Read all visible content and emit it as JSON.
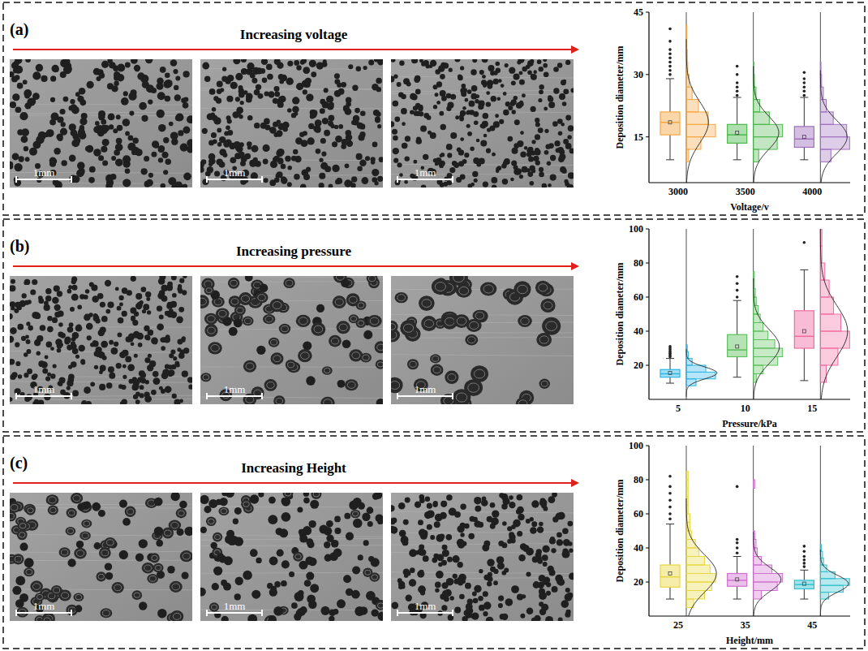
{
  "panels": [
    {
      "letter": "(a)",
      "heading": "Increasing voltage",
      "scale_bars": [
        "1mm",
        "1mm",
        "1mm"
      ]
    },
    {
      "letter": "(b)",
      "heading": "Increasing pressure",
      "scale_bars": [
        "1mm",
        "1mm",
        "1mm"
      ]
    },
    {
      "letter": "(c)",
      "heading": "Increasing Height",
      "scale_bars": [
        "1mm",
        "1mm",
        "1mm"
      ]
    }
  ],
  "chart_data": [
    {
      "type": "box",
      "x_label": "Voltage/v",
      "y_label": "Deposition diameter/mm",
      "categories": [
        "3000",
        "3500",
        "4000"
      ],
      "colors": [
        "#f5a742",
        "#4cb84c",
        "#a070c0"
      ],
      "ylim": [
        4,
        45
      ],
      "yticks": [
        15,
        30,
        45
      ],
      "boxes": [
        {
          "min": 9.5,
          "q1": 15.5,
          "median": 18.5,
          "q3": 21,
          "max": 29,
          "mean": 18.5,
          "outliers": [
            30,
            31,
            32,
            33,
            34,
            35,
            36,
            38,
            41
          ],
          "hist": {
            "bins": [
              9,
              12,
              15,
              18,
              21,
              24,
              27,
              30,
              33,
              36,
              39,
              42
            ],
            "counts": [
              5,
              30,
              60,
              45,
              25,
              12,
              6,
              3,
              2,
              1,
              1
            ]
          },
          "curve": {
            "mean": 18.5,
            "sd": 5
          }
        },
        {
          "min": 9.5,
          "q1": 13.5,
          "median": 15.5,
          "q3": 18,
          "max": 24.5,
          "mean": 16,
          "outliers": [
            25,
            26,
            27,
            28,
            30,
            32
          ],
          "hist": {
            "bins": [
              9,
              12,
              15,
              18,
              21,
              24,
              27,
              30,
              33
            ],
            "counts": [
              10,
              45,
              55,
              30,
              12,
              5,
              2,
              1
            ]
          },
          "curve": {
            "mean": 16,
            "sd": 4
          }
        },
        {
          "min": 9.5,
          "q1": 12.5,
          "median": 14.5,
          "q3": 17.5,
          "max": 24.5,
          "mean": 15,
          "outliers": [
            25,
            26,
            27,
            28,
            29,
            30.5
          ],
          "hist": {
            "bins": [
              9,
              12,
              15,
              18,
              21,
              24,
              27,
              30,
              33
            ],
            "counts": [
              18,
              50,
              45,
              22,
              10,
              5,
              2,
              1
            ]
          },
          "curve": {
            "mean": 15,
            "sd": 4
          }
        }
      ]
    },
    {
      "type": "box",
      "x_label": "Pressure/kPa",
      "y_label": "Deposition diameter/mm",
      "categories": [
        "5",
        "10",
        "15"
      ],
      "colors": [
        "#2bb5e8",
        "#5cc05c",
        "#f06ca0"
      ],
      "ylim": [
        0,
        100
      ],
      "yticks": [
        20,
        40,
        60,
        80,
        100
      ],
      "boxes": [
        {
          "min": 9.5,
          "q1": 13,
          "median": 15,
          "q3": 17.5,
          "max": 24,
          "mean": 15.5,
          "outliers": [
            25,
            26,
            27,
            28,
            29,
            30,
            31
          ],
          "hist": {
            "bins": [
              8,
              12,
              16,
              20,
              24,
              28,
              32
            ],
            "counts": [
              20,
              60,
              40,
              12,
              4,
              2
            ]
          },
          "curve": {
            "mean": 15.5,
            "sd": 3.5
          }
        },
        {
          "min": 13,
          "q1": 25,
          "median": 29,
          "q3": 38,
          "max": 58,
          "mean": 31,
          "outliers": [
            60,
            64,
            68,
            72
          ],
          "hist": {
            "bins": [
              10,
              15,
              20,
              25,
              30,
              35,
              40,
              45,
              50,
              55,
              60,
              65,
              70,
              75
            ],
            "counts": [
              3,
              10,
              25,
              30,
              22,
              15,
              10,
              7,
              5,
              3,
              2,
              1,
              1
            ]
          },
          "curve": {
            "mean": 31,
            "sd": 10
          }
        },
        {
          "min": 11,
          "q1": 30,
          "median": 37,
          "q3": 52,
          "max": 76,
          "mean": 40,
          "outliers": [
            92
          ],
          "hist": {
            "bins": [
              10,
              20,
              30,
              40,
              50,
              60,
              70,
              80,
              90,
              100
            ],
            "counts": [
              4,
              12,
              20,
              14,
              9,
              6,
              3,
              1,
              1
            ]
          },
          "curve": {
            "mean": 40,
            "sd": 15
          }
        }
      ]
    },
    {
      "type": "box",
      "x_label": "Height/mm",
      "y_label": "Deposition diameter/mm",
      "categories": [
        "25",
        "35",
        "45"
      ],
      "colors": [
        "#e8d840",
        "#d070d0",
        "#30c0d0"
      ],
      "ylim": [
        0,
        100
      ],
      "yticks": [
        20,
        40,
        60,
        80,
        100
      ],
      "boxes": [
        {
          "min": 10,
          "q1": 17,
          "median": 23,
          "q3": 30,
          "max": 54,
          "mean": 25,
          "outliers": [
            57,
            60,
            64,
            68,
            72,
            76,
            82
          ],
          "hist": {
            "bins": [
              5,
              10,
              15,
              20,
              25,
              30,
              35,
              40,
              45,
              50,
              55,
              60,
              65,
              70,
              75,
              80,
              85
            ],
            "counts": [
              4,
              10,
              14,
              16,
              13,
              10,
              7,
              5,
              3,
              2,
              2,
              1,
              1,
              1,
              1,
              1
            ]
          },
          "curve": {
            "mean": 25,
            "sd": 11
          }
        },
        {
          "min": 10,
          "q1": 17.5,
          "median": 21,
          "q3": 25,
          "max": 35,
          "mean": 21.5,
          "outliers": [
            37,
            40,
            43,
            45,
            76
          ],
          "hist": {
            "bins": [
              10,
              15,
              20,
              25,
              30,
              35,
              40,
              45,
              50,
              55,
              60,
              65,
              70,
              75,
              80
            ],
            "counts": [
              6,
              18,
              22,
              14,
              6,
              3,
              2,
              1,
              0,
              0,
              0,
              0,
              0,
              1
            ]
          },
          "curve": {
            "mean": 21.5,
            "sd": 7
          }
        },
        {
          "min": 10,
          "q1": 16,
          "median": 18.5,
          "q3": 21,
          "max": 27,
          "mean": 19,
          "outliers": [
            29,
            31,
            33,
            35,
            38,
            41
          ],
          "hist": {
            "bins": [
              10,
              14,
              18,
              22,
              26,
              30,
              34,
              38,
              42
            ],
            "counts": [
              8,
              22,
              28,
              14,
              6,
              3,
              2,
              1
            ]
          },
          "curve": {
            "mean": 19,
            "sd": 5
          }
        }
      ]
    }
  ]
}
